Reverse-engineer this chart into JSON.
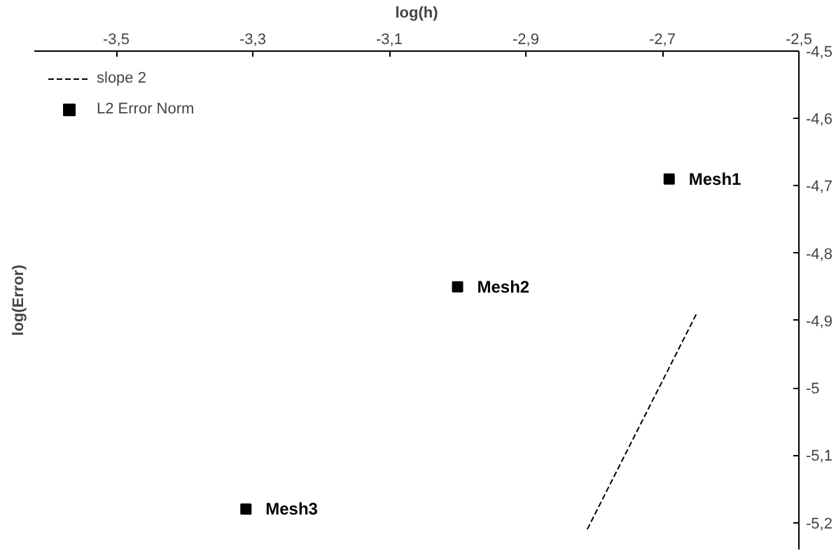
{
  "chart_data": {
    "type": "scatter",
    "xlabel": "log(h)",
    "ylabel": "log(Error)",
    "xlim": [
      -3.62,
      -2.5
    ],
    "ylim": [
      -5.24,
      -4.5
    ],
    "xticks": [
      {
        "value": -3.5,
        "label": "-3,5"
      },
      {
        "value": -3.3,
        "label": "-3,3"
      },
      {
        "value": -3.1,
        "label": "-3,1"
      },
      {
        "value": -2.9,
        "label": "-2,9"
      },
      {
        "value": -2.7,
        "label": "-2,7"
      },
      {
        "value": -2.5,
        "label": "-2,5"
      }
    ],
    "yticks": [
      {
        "value": -4.5,
        "label": "-4,5"
      },
      {
        "value": -4.6,
        "label": "-4,6"
      },
      {
        "value": -4.7,
        "label": "-4,7"
      },
      {
        "value": -4.8,
        "label": "-4,8"
      },
      {
        "value": -4.9,
        "label": "-4,9"
      },
      {
        "value": -5,
        "label": "-5"
      },
      {
        "value": -5.1,
        "label": "-5,1"
      },
      {
        "value": -5.2,
        "label": "-5,2"
      }
    ],
    "series": [
      {
        "name": "slope 2",
        "type": "line",
        "line_style": "dashed",
        "color": "#000000",
        "x": [
          -2.81,
          -2.65
        ],
        "values": [
          -5.21,
          -4.89
        ]
      },
      {
        "name": "L2 Error Norm",
        "marker": "square",
        "color": "#000000",
        "x": [
          -2.69,
          -3.0,
          -3.31
        ],
        "values": [
          -4.69,
          -4.85,
          -5.18
        ]
      }
    ],
    "annotations": [
      {
        "text": "Mesh1",
        "x": -2.69,
        "y": -4.69
      },
      {
        "text": "Mesh2",
        "x": -3.0,
        "y": -4.85
      },
      {
        "text": "Mesh3",
        "x": -3.31,
        "y": -5.18
      }
    ],
    "grid": false,
    "legend": "top left"
  }
}
